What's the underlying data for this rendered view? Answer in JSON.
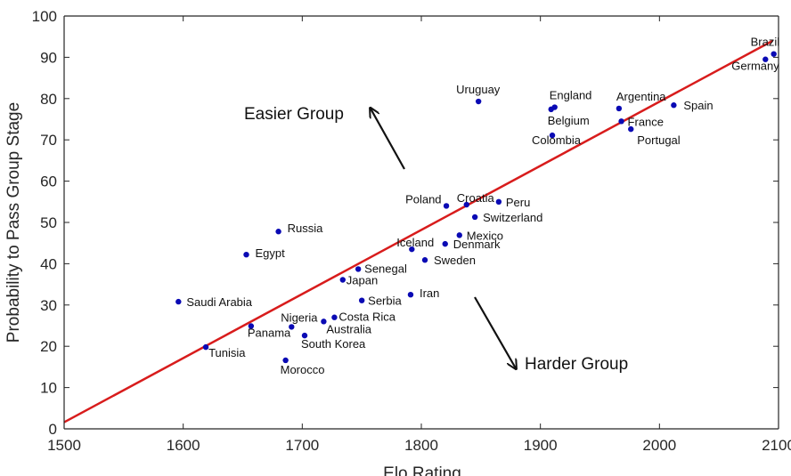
{
  "chart_data": {
    "type": "scatter",
    "xlabel": "Elo Rating",
    "ylabel": "Probability to Pass Group Stage",
    "xlim": [
      1500,
      2100
    ],
    "ylim": [
      0,
      100
    ],
    "xticks": [
      1500,
      1600,
      1700,
      1800,
      1900,
      2000,
      2100
    ],
    "yticks": [
      0,
      10,
      20,
      30,
      40,
      50,
      60,
      70,
      80,
      90,
      100
    ],
    "grid": false,
    "colors": {
      "points": "#0a0ab4",
      "fit_line": "#d81c1c",
      "axes": "#262626"
    },
    "points": [
      {
        "label": "Brazil",
        "x": 2096,
        "y": 90.8
      },
      {
        "label": "Germany",
        "x": 2089,
        "y": 89.5
      },
      {
        "label": "Spain",
        "x": 2012,
        "y": 78.4
      },
      {
        "label": "Argentina",
        "x": 1966,
        "y": 77.6
      },
      {
        "label": "France",
        "x": 1968,
        "y": 74.5
      },
      {
        "label": "Portugal",
        "x": 1976,
        "y": 72.6
      },
      {
        "label": "England",
        "x": 1912,
        "y": 77.9
      },
      {
        "label": "Belgium",
        "x": 1909,
        "y": 77.4
      },
      {
        "label": "Colombia",
        "x": 1910,
        "y": 71.1
      },
      {
        "label": "Uruguay",
        "x": 1848,
        "y": 79.3
      },
      {
        "label": "Peru",
        "x": 1865,
        "y": 55.0
      },
      {
        "label": "Croatia",
        "x": 1838,
        "y": 54.3
      },
      {
        "label": "Poland",
        "x": 1821,
        "y": 54.0
      },
      {
        "label": "Switzerland",
        "x": 1845,
        "y": 51.3
      },
      {
        "label": "Mexico",
        "x": 1832,
        "y": 46.9
      },
      {
        "label": "Denmark",
        "x": 1820,
        "y": 44.8
      },
      {
        "label": "Iceland",
        "x": 1792,
        "y": 43.5
      },
      {
        "label": "Sweden",
        "x": 1803,
        "y": 40.9
      },
      {
        "label": "Russia",
        "x": 1680,
        "y": 47.8
      },
      {
        "label": "Egypt",
        "x": 1653,
        "y": 42.2
      },
      {
        "label": "Senegal",
        "x": 1747,
        "y": 38.7
      },
      {
        "label": "Japan",
        "x": 1734,
        "y": 36.1
      },
      {
        "label": "Serbia",
        "x": 1750,
        "y": 31.1
      },
      {
        "label": "Iran",
        "x": 1791,
        "y": 32.5
      },
      {
        "label": "Saudi Arabia",
        "x": 1596,
        "y": 30.8
      },
      {
        "label": "Costa Rica",
        "x": 1727,
        "y": 27.0
      },
      {
        "label": "Australia",
        "x": 1718,
        "y": 26.0
      },
      {
        "label": "Nigeria",
        "x": 1691,
        "y": 24.7
      },
      {
        "label": "Panama",
        "x": 1657,
        "y": 24.9
      },
      {
        "label": "South Korea",
        "x": 1702,
        "y": 22.6
      },
      {
        "label": "Tunisia",
        "x": 1619,
        "y": 19.8
      },
      {
        "label": "Morocco",
        "x": 1686,
        "y": 16.6
      }
    ],
    "fit_line": {
      "x": [
        1500,
        2095
      ],
      "y": [
        1.6,
        94.0
      ]
    },
    "annotations": [
      {
        "text": "Easier Group",
        "direction": "up-left"
      },
      {
        "text": "Harder Group",
        "direction": "down-right"
      }
    ]
  }
}
